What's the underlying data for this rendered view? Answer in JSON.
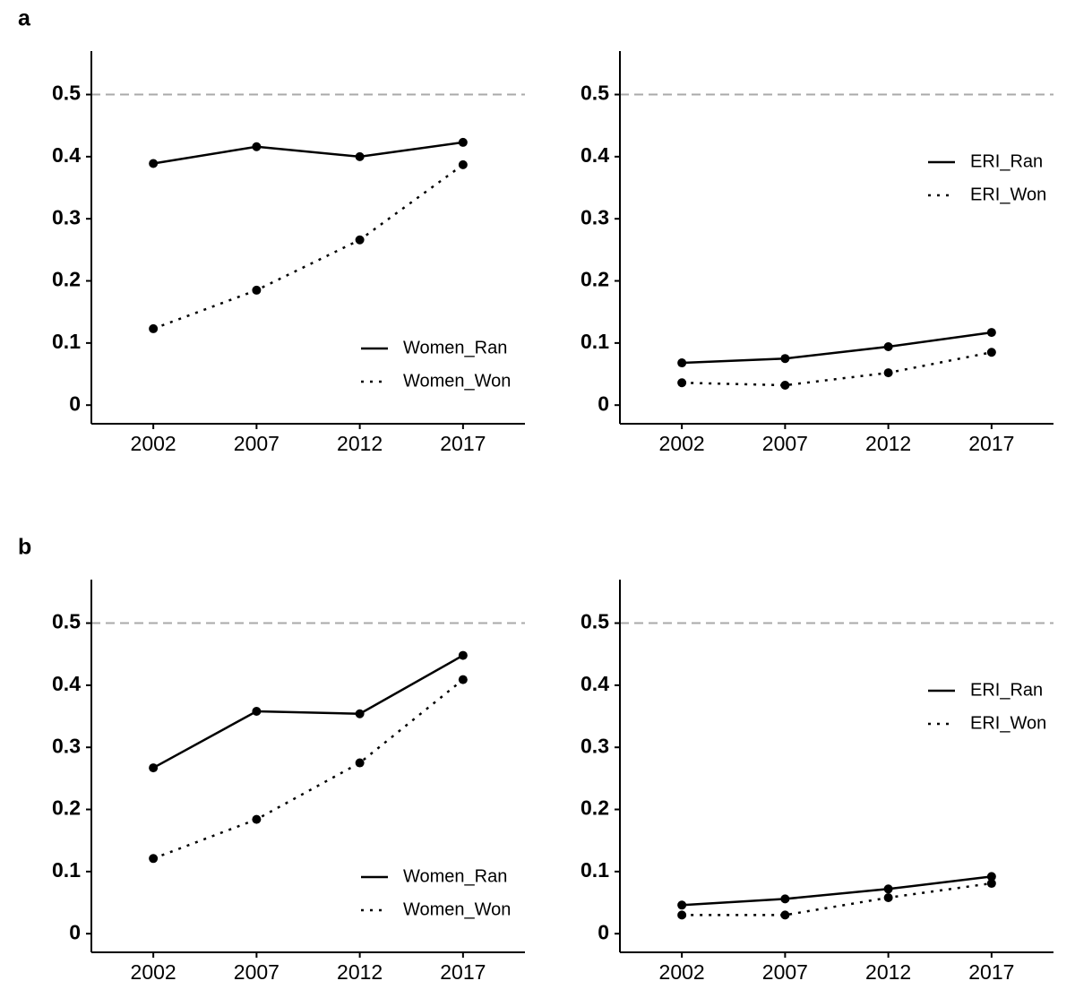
{
  "chart_data": [
    {
      "type": "line",
      "panel_label": "a",
      "x": [
        2002,
        2007,
        2012,
        2017
      ],
      "xlim": [
        1999,
        2020
      ],
      "xticks": [
        2002,
        2007,
        2012,
        2017
      ],
      "ylim": [
        -0.03,
        0.57
      ],
      "yticks": [
        0,
        0.1,
        0.2,
        0.3,
        0.4,
        0.5
      ],
      "hline": 0.5,
      "hline_color": "#aaaaaa",
      "legend": "bottom-right",
      "series": [
        {
          "name": "Women_Ran",
          "color": "#000000",
          "linestyle": "solid",
          "values": [
            0.389,
            0.416,
            0.4,
            0.423
          ]
        },
        {
          "name": "Women_Won",
          "color": "#000000",
          "linestyle": "dotted",
          "values": [
            0.123,
            0.185,
            0.266,
            0.387
          ]
        }
      ]
    },
    {
      "type": "line",
      "x": [
        2002,
        2007,
        2012,
        2017
      ],
      "xlim": [
        1999,
        2020
      ],
      "xticks": [
        2002,
        2007,
        2012,
        2017
      ],
      "ylim": [
        -0.03,
        0.57
      ],
      "yticks": [
        0,
        0.1,
        0.2,
        0.3,
        0.4,
        0.5
      ],
      "hline": 0.5,
      "hline_color": "#aaaaaa",
      "legend": "top-right",
      "series": [
        {
          "name": "ERI_Ran",
          "color": "#000000",
          "linestyle": "solid",
          "values": [
            0.068,
            0.075,
            0.094,
            0.117
          ]
        },
        {
          "name": "ERI_Won",
          "color": "#000000",
          "linestyle": "dotted",
          "values": [
            0.036,
            0.032,
            0.052,
            0.085
          ]
        }
      ]
    },
    {
      "type": "line",
      "panel_label": "b",
      "x": [
        2002,
        2007,
        2012,
        2017
      ],
      "xlim": [
        1999,
        2020
      ],
      "xticks": [
        2002,
        2007,
        2012,
        2017
      ],
      "ylim": [
        -0.03,
        0.57
      ],
      "yticks": [
        0,
        0.1,
        0.2,
        0.3,
        0.4,
        0.5
      ],
      "hline": 0.5,
      "hline_color": "#aaaaaa",
      "legend": "bottom-right",
      "series": [
        {
          "name": "Women_Ran",
          "color": "#000000",
          "linestyle": "solid",
          "values": [
            0.267,
            0.358,
            0.354,
            0.448
          ]
        },
        {
          "name": "Women_Won",
          "color": "#000000",
          "linestyle": "dotted",
          "values": [
            0.121,
            0.184,
            0.275,
            0.409
          ]
        }
      ]
    },
    {
      "type": "line",
      "x": [
        2002,
        2007,
        2012,
        2017
      ],
      "xlim": [
        1999,
        2020
      ],
      "xticks": [
        2002,
        2007,
        2012,
        2017
      ],
      "ylim": [
        -0.03,
        0.57
      ],
      "yticks": [
        0,
        0.1,
        0.2,
        0.3,
        0.4,
        0.5
      ],
      "hline": 0.5,
      "hline_color": "#aaaaaa",
      "legend": "top-right",
      "series": [
        {
          "name": "ERI_Ran",
          "color": "#000000",
          "linestyle": "solid",
          "values": [
            0.046,
            0.056,
            0.072,
            0.092
          ]
        },
        {
          "name": "ERI_Won",
          "color": "#000000",
          "linestyle": "dotted",
          "values": [
            0.03,
            0.03,
            0.058,
            0.081
          ]
        }
      ]
    }
  ]
}
